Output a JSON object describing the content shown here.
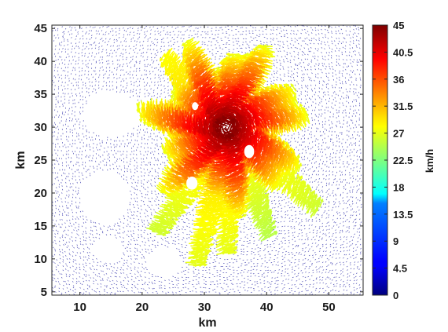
{
  "chart_data": {
    "type": "quiver",
    "xlabel": "km",
    "ylabel": "km",
    "xlim": [
      5.5,
      55.5
    ],
    "ylim": [
      4.5,
      45.5
    ],
    "xticks": [
      10,
      20,
      30,
      40,
      50
    ],
    "yticks": [
      5,
      10,
      15,
      20,
      25,
      30,
      35,
      40,
      45
    ],
    "grid": false,
    "colorbar": {
      "label": "km/h",
      "colormap": "jet",
      "min": 0,
      "max": 45,
      "ticks": [
        "0",
        "4.5",
        "9",
        "13.5",
        "18",
        "22.5",
        "27",
        "31.5",
        "36",
        "40.5",
        "45"
      ]
    },
    "storm_center": [
      33.5,
      30.0
    ],
    "peak_speed": 45,
    "background_speed": 1.5,
    "vector_field_extent": {
      "x": [
        5.5,
        55.5
      ],
      "y": [
        4.5,
        45.5
      ]
    },
    "no_data_regions": [
      {
        "center": [
          15.0,
          32.0
        ],
        "radii": [
          4.5,
          3.5
        ]
      },
      {
        "center": [
          14.0,
          19.5
        ],
        "radii": [
          4.0,
          4.0
        ]
      },
      {
        "center": [
          14.5,
          11.5
        ],
        "radii": [
          2.5,
          2.0
        ]
      },
      {
        "center": [
          23.5,
          9.5
        ],
        "radii": [
          2.8,
          2.3
        ]
      }
    ],
    "wind_arms": [
      {
        "tip": [
          24.0,
          41.5
        ],
        "speed": 28
      },
      {
        "tip": [
          21.5,
          14.0
        ],
        "speed": 26
      },
      {
        "tip": [
          28.0,
          9.0
        ],
        "speed": 27
      },
      {
        "tip": [
          33.0,
          10.5
        ],
        "speed": 27
      },
      {
        "tip": [
          48.0,
          17.0
        ],
        "speed": 26
      },
      {
        "tip": [
          40.0,
          13.0
        ],
        "speed": 25
      }
    ]
  }
}
